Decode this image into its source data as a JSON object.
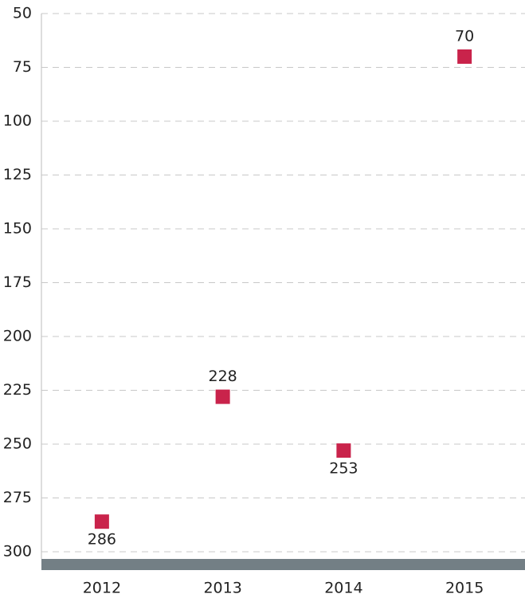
{
  "chart_data": {
    "type": "scatter",
    "categories": [
      "2012",
      "2013",
      "2014",
      "2015"
    ],
    "values": [
      286,
      228,
      253,
      70
    ],
    "color": "#c9234b",
    "ylim": [
      50,
      300
    ],
    "y_inverted": true,
    "yticks": [
      50,
      75,
      100,
      125,
      150,
      175,
      200,
      225,
      250,
      275,
      300
    ],
    "grid": true
  }
}
